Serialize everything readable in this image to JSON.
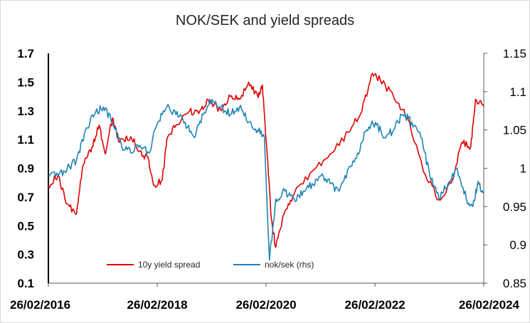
{
  "chart_data": {
    "type": "line",
    "title": "NOK/SEK and yield spreads",
    "x_ticks": [
      "26/02/2016",
      "26/02/2018",
      "26/02/2020",
      "26/02/2022",
      "26/02/2024"
    ],
    "x_range": [
      "2016-02-26",
      "2024-02-26"
    ],
    "y_left": {
      "range": [
        0.1,
        1.7
      ],
      "ticks": [
        "0.1",
        "0.3",
        "0.5",
        "0.7",
        "0.9",
        "1.1",
        "1.3",
        "1.5",
        "1.7"
      ]
    },
    "y_right": {
      "range": [
        0.85,
        1.15
      ],
      "ticks": [
        "0.85",
        "0.9",
        "0.95",
        "1",
        "1.05",
        "1.1",
        "1.15"
      ]
    },
    "grid": false,
    "legend_position": "bottom-inside",
    "series": [
      {
        "name": "10y yield spread",
        "axis": "left",
        "color": "#e00000",
        "points": [
          [
            "2016-02-26",
            0.78
          ],
          [
            "2016-05-01",
            0.85
          ],
          [
            "2016-07-01",
            0.65
          ],
          [
            "2016-09-01",
            0.58
          ],
          [
            "2016-10-15",
            0.92
          ],
          [
            "2016-12-15",
            1.05
          ],
          [
            "2017-02-01",
            1.2
          ],
          [
            "2017-03-15",
            1.0
          ],
          [
            "2017-05-01",
            1.25
          ],
          [
            "2017-06-15",
            1.08
          ],
          [
            "2017-09-01",
            1.12
          ],
          [
            "2017-11-01",
            1.02
          ],
          [
            "2018-01-01",
            0.95
          ],
          [
            "2018-02-01",
            0.78
          ],
          [
            "2018-04-01",
            0.82
          ],
          [
            "2018-05-01",
            1.1
          ],
          [
            "2018-07-01",
            1.2
          ],
          [
            "2018-10-01",
            1.3
          ],
          [
            "2018-12-01",
            1.28
          ],
          [
            "2019-02-01",
            1.38
          ],
          [
            "2019-05-01",
            1.3
          ],
          [
            "2019-07-01",
            1.4
          ],
          [
            "2019-09-01",
            1.38
          ],
          [
            "2019-11-01",
            1.5
          ],
          [
            "2020-01-01",
            1.4
          ],
          [
            "2020-02-01",
            1.48
          ],
          [
            "2020-03-01",
            1.05
          ],
          [
            "2020-04-01",
            0.55
          ],
          [
            "2020-05-01",
            0.35
          ],
          [
            "2020-07-01",
            0.6
          ],
          [
            "2020-09-01",
            0.72
          ],
          [
            "2021-01-01",
            0.88
          ],
          [
            "2021-05-01",
            1.0
          ],
          [
            "2021-09-01",
            1.15
          ],
          [
            "2021-12-01",
            1.3
          ],
          [
            "2022-02-01",
            1.55
          ],
          [
            "2022-04-01",
            1.52
          ],
          [
            "2022-07-01",
            1.4
          ],
          [
            "2022-10-01",
            1.25
          ],
          [
            "2023-02-01",
            0.85
          ],
          [
            "2023-05-01",
            0.68
          ],
          [
            "2023-08-01",
            0.82
          ],
          [
            "2023-10-01",
            1.08
          ],
          [
            "2023-12-01",
            1.05
          ],
          [
            "2024-01-01",
            1.38
          ],
          [
            "2024-02-26",
            1.33
          ]
        ]
      },
      {
        "name": "nok/sek (rhs)",
        "axis": "right",
        "color": "#1f84b4",
        "points": [
          [
            "2016-02-26",
            0.99
          ],
          [
            "2016-05-01",
            0.99
          ],
          [
            "2016-07-01",
            1.0
          ],
          [
            "2016-09-01",
            1.01
          ],
          [
            "2016-11-01",
            1.05
          ],
          [
            "2017-01-01",
            1.07
          ],
          [
            "2017-03-01",
            1.08
          ],
          [
            "2017-05-01",
            1.06
          ],
          [
            "2017-07-01",
            1.03
          ],
          [
            "2017-09-01",
            1.02
          ],
          [
            "2017-11-01",
            1.03
          ],
          [
            "2018-01-01",
            1.02
          ],
          [
            "2018-03-01",
            1.06
          ],
          [
            "2018-05-01",
            1.08
          ],
          [
            "2018-07-01",
            1.07
          ],
          [
            "2018-09-01",
            1.06
          ],
          [
            "2018-11-01",
            1.04
          ],
          [
            "2019-01-01",
            1.07
          ],
          [
            "2019-03-01",
            1.09
          ],
          [
            "2019-05-01",
            1.08
          ],
          [
            "2019-07-01",
            1.07
          ],
          [
            "2019-09-01",
            1.08
          ],
          [
            "2019-11-01",
            1.06
          ],
          [
            "2020-01-01",
            1.05
          ],
          [
            "2020-02-15",
            1.04
          ],
          [
            "2020-03-20",
            0.88
          ],
          [
            "2020-05-01",
            0.96
          ],
          [
            "2020-07-01",
            0.97
          ],
          [
            "2020-09-01",
            0.96
          ],
          [
            "2020-11-01",
            0.97
          ],
          [
            "2021-01-01",
            0.98
          ],
          [
            "2021-03-01",
            0.99
          ],
          [
            "2021-05-01",
            0.98
          ],
          [
            "2021-07-01",
            0.97
          ],
          [
            "2021-09-01",
            1.0
          ],
          [
            "2021-11-01",
            1.02
          ],
          [
            "2022-01-01",
            1.05
          ],
          [
            "2022-03-01",
            1.06
          ],
          [
            "2022-05-01",
            1.04
          ],
          [
            "2022-07-01",
            1.05
          ],
          [
            "2022-09-01",
            1.07
          ],
          [
            "2022-11-01",
            1.06
          ],
          [
            "2023-01-01",
            1.04
          ],
          [
            "2023-03-01",
            0.99
          ],
          [
            "2023-05-01",
            0.96
          ],
          [
            "2023-07-01",
            0.98
          ],
          [
            "2023-09-01",
            1.0
          ],
          [
            "2023-11-01",
            0.96
          ],
          [
            "2023-12-15",
            0.95
          ],
          [
            "2024-01-15",
            0.98
          ],
          [
            "2024-02-26",
            0.97
          ]
        ]
      }
    ]
  }
}
